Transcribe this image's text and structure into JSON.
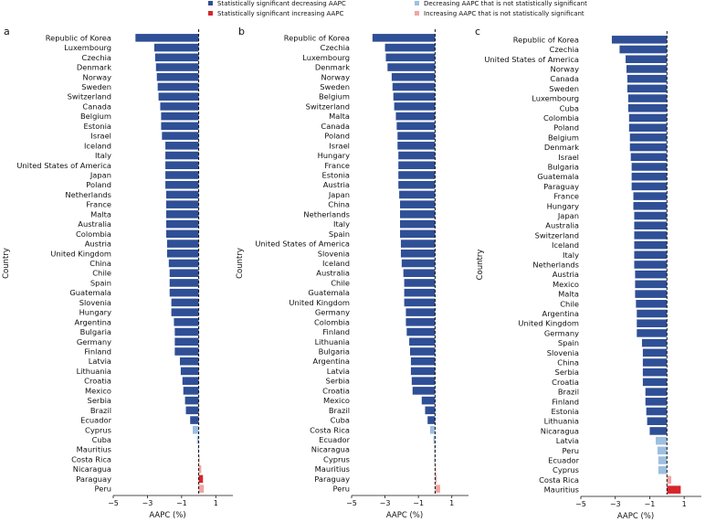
{
  "colors": {
    "sig_decrease": "#2f4f96",
    "sig_increase": "#d7262b",
    "nonsig_decrease": "#9dbfe0",
    "nonsig_increase": "#f1a4a2"
  },
  "legend": [
    {
      "label": "Statistically significant decreasing AAPC",
      "color_key": "sig_decrease"
    },
    {
      "label": "Statistically significant increasing AAPC",
      "color_key": "sig_increase"
    },
    {
      "label": "Decreasing AAPC that is not statistically significant",
      "color_key": "nonsig_decrease"
    },
    {
      "label": "Increasing AAPC that is not statistically significant",
      "color_key": "nonsig_increase"
    }
  ],
  "chart_data": [
    {
      "type": "bar",
      "orientation": "horizontal",
      "panel_label": "a",
      "xlabel": "AAPC (%)",
      "ylabel": "Country",
      "xlim": [
        -5,
        2
      ],
      "xticks": [
        -5,
        -3,
        -1,
        1
      ],
      "reference_line": 0,
      "categories": [
        "Republic of Korea",
        "Luxembourg",
        "Czechia",
        "Denmark",
        "Norway",
        "Sweden",
        "Switzerland",
        "Canada",
        "Belgium",
        "Estonia",
        "Israel",
        "Iceland",
        "Italy",
        "United States of America",
        "Japan",
        "Poland",
        "Netherlands",
        "France",
        "Malta",
        "Australia",
        "Colombia",
        "Austria",
        "United Kingdom",
        "China",
        "Chile",
        "Spain",
        "Guatemala",
        "Slovenia",
        "Hungary",
        "Argentina",
        "Bulgaria",
        "Germany",
        "Finland",
        "Latvia",
        "Lithuania",
        "Croatia",
        "Mexico",
        "Serbia",
        "Brazil",
        "Ecuador",
        "Cyprus",
        "Cuba",
        "Mauritius",
        "Costa Rica",
        "Nicaragua",
        "Paraguay",
        "Peru"
      ],
      "values": [
        -3.7,
        -2.6,
        -2.55,
        -2.5,
        -2.45,
        -2.4,
        -2.35,
        -2.25,
        -2.2,
        -2.2,
        -2.15,
        -1.95,
        -1.95,
        -1.95,
        -1.95,
        -1.95,
        -1.9,
        -1.9,
        -1.9,
        -1.9,
        -1.9,
        -1.85,
        -1.85,
        -1.75,
        -1.7,
        -1.7,
        -1.7,
        -1.6,
        -1.6,
        -1.45,
        -1.4,
        -1.4,
        -1.4,
        -1.1,
        -1.05,
        -0.95,
        -0.9,
        -0.8,
        -0.75,
        -0.5,
        -0.35,
        -0.1,
        -0.05,
        0.05,
        0.15,
        0.25,
        0.3
      ],
      "significance": [
        "sig_decrease",
        "sig_decrease",
        "sig_decrease",
        "sig_decrease",
        "sig_decrease",
        "sig_decrease",
        "sig_decrease",
        "sig_decrease",
        "sig_decrease",
        "sig_decrease",
        "sig_decrease",
        "sig_decrease",
        "sig_decrease",
        "sig_decrease",
        "sig_decrease",
        "sig_decrease",
        "sig_decrease",
        "sig_decrease",
        "sig_decrease",
        "sig_decrease",
        "sig_decrease",
        "sig_decrease",
        "sig_decrease",
        "sig_decrease",
        "sig_decrease",
        "sig_decrease",
        "sig_decrease",
        "sig_decrease",
        "sig_decrease",
        "sig_decrease",
        "sig_decrease",
        "sig_decrease",
        "sig_decrease",
        "sig_decrease",
        "sig_decrease",
        "sig_decrease",
        "sig_decrease",
        "sig_decrease",
        "sig_decrease",
        "sig_decrease",
        "nonsig_decrease",
        "nonsig_decrease",
        "nonsig_decrease",
        "nonsig_increase",
        "nonsig_increase",
        "sig_increase",
        "nonsig_increase"
      ]
    },
    {
      "type": "bar",
      "orientation": "horizontal",
      "panel_label": "b",
      "xlabel": "AAPC (%)",
      "ylabel": "Country",
      "xlim": [
        -5,
        2
      ],
      "xticks": [
        -5,
        -3,
        -1,
        1
      ],
      "reference_line": 0,
      "categories": [
        "Republic of Korea",
        "Czechia",
        "Luxembourg",
        "Denmark",
        "Norway",
        "Sweden",
        "Belgium",
        "Switzerland",
        "Malta",
        "Canada",
        "Poland",
        "Israel",
        "Hungary",
        "France",
        "Estonia",
        "Austria",
        "Japan",
        "China",
        "Netherlands",
        "Italy",
        "Spain",
        "United States of America",
        "Slovenia",
        "Iceland",
        "Australia",
        "Chile",
        "Guatemala",
        "United Kingdom",
        "Germany",
        "Colombia",
        "Finland",
        "Lithuania",
        "Bulgaria",
        "Argentina",
        "Latvia",
        "Serbia",
        "Croatia",
        "Mexico",
        "Brazil",
        "Cuba",
        "Costa Rica",
        "Ecuador",
        "Nicaragua",
        "Cyprus",
        "Mauritius",
        "Paraguay",
        "Peru"
      ],
      "values": [
        -3.75,
        -3.0,
        -2.95,
        -2.85,
        -2.6,
        -2.55,
        -2.5,
        -2.45,
        -2.35,
        -2.3,
        -2.25,
        -2.25,
        -2.2,
        -2.2,
        -2.2,
        -2.2,
        -2.15,
        -2.1,
        -2.1,
        -2.1,
        -2.1,
        -2.05,
        -2.05,
        -2.0,
        -1.9,
        -1.85,
        -1.85,
        -1.85,
        -1.75,
        -1.75,
        -1.7,
        -1.55,
        -1.5,
        -1.45,
        -1.45,
        -1.4,
        -1.35,
        -0.8,
        -0.6,
        -0.45,
        -0.3,
        -0.1,
        -0.05,
        -0.05,
        0.05,
        0.1,
        0.3
      ],
      "significance": [
        "sig_decrease",
        "sig_decrease",
        "sig_decrease",
        "sig_decrease",
        "sig_decrease",
        "sig_decrease",
        "sig_decrease",
        "sig_decrease",
        "sig_decrease",
        "sig_decrease",
        "sig_decrease",
        "sig_decrease",
        "sig_decrease",
        "sig_decrease",
        "sig_decrease",
        "sig_decrease",
        "sig_decrease",
        "sig_decrease",
        "sig_decrease",
        "sig_decrease",
        "sig_decrease",
        "sig_decrease",
        "sig_decrease",
        "sig_decrease",
        "sig_decrease",
        "sig_decrease",
        "sig_decrease",
        "sig_decrease",
        "sig_decrease",
        "sig_decrease",
        "sig_decrease",
        "sig_decrease",
        "sig_decrease",
        "sig_decrease",
        "sig_decrease",
        "sig_decrease",
        "sig_decrease",
        "sig_decrease",
        "sig_decrease",
        "sig_decrease",
        "nonsig_decrease",
        "nonsig_decrease",
        "nonsig_decrease",
        "nonsig_decrease",
        "nonsig_increase",
        "nonsig_increase",
        "nonsig_increase"
      ]
    },
    {
      "type": "bar",
      "orientation": "horizontal",
      "panel_label": "c",
      "xlabel": "AAPC (%)",
      "ylabel": "Country",
      "xlim": [
        -5,
        2
      ],
      "xticks": [
        -5,
        -3,
        -1,
        1
      ],
      "reference_line": 0,
      "categories": [
        "Republic of Korea",
        "Czechia",
        "United States of America",
        "Norway",
        "Canada",
        "Sweden",
        "Luxembourg",
        "Cuba",
        "Colombia",
        "Poland",
        "Belgium",
        "Denmark",
        "Israel",
        "Bulgaria",
        "Guatemala",
        "Paraguay",
        "France",
        "Hungary",
        "Japan",
        "Australia",
        "Switzerland",
        "Iceland",
        "Italy",
        "Netherlands",
        "Austria",
        "Mexico",
        "Malta",
        "Chile",
        "Argentina",
        "United Kingdom",
        "Germany",
        "Spain",
        "Slovenia",
        "China",
        "Serbia",
        "Croatia",
        "Brazil",
        "Finland",
        "Estonia",
        "Lithuania",
        "Nicaragua",
        "Latvia",
        "Peru",
        "Ecuador",
        "Cyprus",
        "Costa Rica",
        "Mauritius"
      ],
      "values": [
        -3.2,
        -2.75,
        -2.4,
        -2.35,
        -2.3,
        -2.3,
        -2.25,
        -2.25,
        -2.2,
        -2.2,
        -2.15,
        -2.15,
        -2.1,
        -2.05,
        -2.05,
        -2.05,
        -1.95,
        -1.95,
        -1.9,
        -1.9,
        -1.9,
        -1.9,
        -1.9,
        -1.9,
        -1.85,
        -1.85,
        -1.85,
        -1.8,
        -1.75,
        -1.75,
        -1.75,
        -1.45,
        -1.4,
        -1.4,
        -1.4,
        -1.4,
        -1.25,
        -1.25,
        -1.2,
        -1.15,
        -1.0,
        -0.65,
        -0.55,
        -0.5,
        -0.5,
        0.25,
        0.8
      ],
      "significance": [
        "sig_decrease",
        "sig_decrease",
        "sig_decrease",
        "sig_decrease",
        "sig_decrease",
        "sig_decrease",
        "sig_decrease",
        "sig_decrease",
        "sig_decrease",
        "sig_decrease",
        "sig_decrease",
        "sig_decrease",
        "sig_decrease",
        "sig_decrease",
        "sig_decrease",
        "sig_decrease",
        "sig_decrease",
        "sig_decrease",
        "sig_decrease",
        "sig_decrease",
        "sig_decrease",
        "sig_decrease",
        "sig_decrease",
        "sig_decrease",
        "sig_decrease",
        "sig_decrease",
        "sig_decrease",
        "sig_decrease",
        "sig_decrease",
        "sig_decrease",
        "sig_decrease",
        "sig_decrease",
        "sig_decrease",
        "sig_decrease",
        "sig_decrease",
        "sig_decrease",
        "sig_decrease",
        "sig_decrease",
        "sig_decrease",
        "sig_decrease",
        "sig_decrease",
        "nonsig_decrease",
        "nonsig_decrease",
        "nonsig_decrease",
        "nonsig_decrease",
        "nonsig_increase",
        "sig_increase"
      ]
    }
  ]
}
